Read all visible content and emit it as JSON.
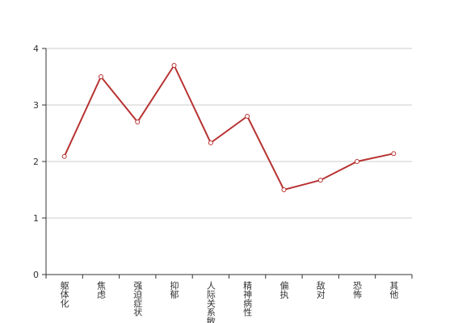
{
  "chart_data": {
    "type": "line",
    "categories": [
      "躯体化",
      "焦虑",
      "强迫症状",
      "抑郁",
      "人际关系敏感",
      "精神病性",
      "偏执",
      "敌对",
      "恐怖",
      "其他"
    ],
    "series": [
      {
        "color": "#b83232",
        "values": [
          2.09,
          3.5,
          2.7,
          3.7,
          2.33,
          2.8,
          1.5,
          1.67,
          2.0,
          2.14
        ]
      }
    ],
    "ylim": [
      0,
      4
    ],
    "yticks": [
      0,
      1,
      2,
      3,
      4
    ],
    "grid": true
  }
}
